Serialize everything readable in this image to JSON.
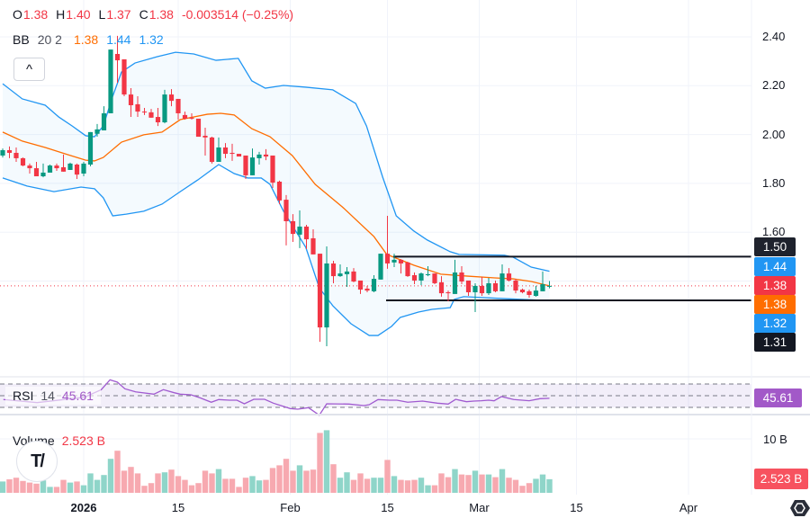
{
  "legend": {
    "o_label": "O",
    "o": "1.38",
    "h_label": "H",
    "h": "1.40",
    "l_label": "L",
    "l": "1.37",
    "c_label": "C",
    "c": "1.38",
    "change": "-0.003514 (−0.25%)"
  },
  "bb": {
    "name": "BB",
    "params": "20 2",
    "basis": "1.38",
    "upper": "1.44",
    "lower": "1.32"
  },
  "collapse_icon": "chevron-up-icon",
  "collapse_glyph": "^",
  "rsi": {
    "name": "RSI",
    "params": "14",
    "value": "45.61"
  },
  "volume": {
    "name": "Volume",
    "value": "2.523 B",
    "axis_tick": "10 B",
    "axis_label": "2.523 B"
  },
  "logo_text": "TV",
  "price_axis_ticks": [
    "2.40",
    "2.20",
    "2.00",
    "1.80",
    "1.60"
  ],
  "price_labels": [
    {
      "text": "1.50",
      "color": "#1e222d"
    },
    {
      "text": "1.44",
      "color": "#2196f3"
    },
    {
      "text": "1.38",
      "color": "#f23645"
    },
    {
      "text": "1.38",
      "color": "#ff6d00"
    },
    {
      "text": "1.32",
      "color": "#2196f3"
    },
    {
      "text": "1.31",
      "color": "#131722"
    }
  ],
  "time_axis": [
    "2026",
    "15",
    "Feb",
    "15",
    "Mar",
    "15",
    "Apr"
  ],
  "colors": {
    "up": "#089981",
    "down": "#f23645",
    "bb_band": "#2196f3",
    "bb_basis": "#ff6d00",
    "rsi": "#a05ad0",
    "rsi_label": "#a259c8",
    "level_line": "#131722",
    "volume_up": "#8fd5c9",
    "volume_down": "#f7a9b0"
  },
  "chart_data": [
    {
      "type": "candlestick",
      "ylim": [
        1.1,
        2.45
      ],
      "y_ticks": [
        2.4,
        2.2,
        2.0,
        1.8,
        1.6,
        1.4
      ],
      "horizontal_levels": [
        1.5,
        1.31
      ],
      "last_price": 1.38,
      "ohlc": [
        [
          1.914,
          1.943,
          1.906,
          1.936
        ],
        [
          1.936,
          1.951,
          1.903,
          1.925
        ],
        [
          1.925,
          1.947,
          1.888,
          1.903
        ],
        [
          1.903,
          1.906,
          1.87,
          1.873
        ],
        [
          1.873,
          1.881,
          1.84,
          1.862
        ],
        [
          1.862,
          1.888,
          1.829,
          1.829
        ],
        [
          1.829,
          1.881,
          1.825,
          1.844
        ],
        [
          1.844,
          1.877,
          1.844,
          1.873
        ],
        [
          1.873,
          1.881,
          1.851,
          1.862
        ],
        [
          1.866,
          1.918,
          1.848,
          1.848
        ],
        [
          1.855,
          1.885,
          1.855,
          1.881
        ],
        [
          1.877,
          1.881,
          1.818,
          1.836
        ],
        [
          1.84,
          1.888,
          1.829,
          1.881
        ],
        [
          1.877,
          2.01,
          1.87,
          2.01
        ],
        [
          2.003,
          2.043,
          1.991,
          2.021
        ],
        [
          2.017,
          2.116,
          2.017,
          2.087
        ],
        [
          2.087,
          2.348,
          2.087,
          2.348
        ],
        [
          2.33,
          2.404,
          2.212,
          2.304
        ],
        [
          2.308,
          2.308,
          2.157,
          2.164
        ],
        [
          2.164,
          2.19,
          2.072,
          2.12
        ],
        [
          2.124,
          2.157,
          2.072,
          2.094
        ],
        [
          2.094,
          2.109,
          2.08,
          2.091
        ],
        [
          2.091,
          2.105,
          2.069,
          2.069
        ],
        [
          2.072,
          2.109,
          2.035,
          2.05
        ],
        [
          2.05,
          2.183,
          2.046,
          2.164
        ],
        [
          2.164,
          2.186,
          2.116,
          2.138
        ],
        [
          2.146,
          2.146,
          2.061,
          2.087
        ],
        [
          2.08,
          2.094,
          2.061,
          2.065
        ],
        [
          2.069,
          2.087,
          2.061,
          2.065
        ],
        [
          2.065,
          2.065,
          1.991,
          1.991
        ],
        [
          1.995,
          2.028,
          1.914,
          1.988
        ],
        [
          1.988,
          1.991,
          1.881,
          1.888
        ],
        [
          1.888,
          1.988,
          1.888,
          1.947
        ],
        [
          1.947,
          1.965,
          1.903,
          1.921
        ],
        [
          1.925,
          1.962,
          1.892,
          1.921
        ],
        [
          1.921,
          1.921,
          1.91,
          1.91
        ],
        [
          1.914,
          1.914,
          1.818,
          1.833
        ],
        [
          1.833,
          1.943,
          1.833,
          1.906
        ],
        [
          1.903,
          1.929,
          1.877,
          1.918
        ],
        [
          1.918,
          1.94,
          1.895,
          1.91
        ],
        [
          1.914,
          1.914,
          1.781,
          1.803
        ],
        [
          1.807,
          1.811,
          1.715,
          1.73
        ],
        [
          1.733,
          1.752,
          1.546,
          1.645
        ],
        [
          1.645,
          1.674,
          1.56,
          1.593
        ],
        [
          1.59,
          1.689,
          1.535,
          1.623
        ],
        [
          1.623,
          1.63,
          1.531,
          1.571
        ],
        [
          1.575,
          1.612,
          1.509,
          1.509
        ],
        [
          1.512,
          1.512,
          1.151,
          1.21
        ],
        [
          1.21,
          1.542,
          1.133,
          1.472
        ],
        [
          1.472,
          1.483,
          1.391,
          1.42
        ],
        [
          1.42,
          1.468,
          1.417,
          1.431
        ],
        [
          1.428,
          1.457,
          1.376,
          1.439
        ],
        [
          1.439,
          1.453,
          1.395,
          1.398
        ],
        [
          1.402,
          1.402,
          1.347,
          1.365
        ],
        [
          1.369,
          1.38,
          1.354,
          1.361
        ],
        [
          1.358,
          1.424,
          1.354,
          1.409
        ],
        [
          1.406,
          1.512,
          1.406,
          1.512
        ],
        [
          1.512,
          1.667,
          1.45,
          1.472
        ],
        [
          1.476,
          1.512,
          1.457,
          1.487
        ],
        [
          1.487,
          1.49,
          1.431,
          1.472
        ],
        [
          1.476,
          1.479,
          1.417,
          1.42
        ],
        [
          1.424,
          1.435,
          1.387,
          1.402
        ],
        [
          1.402,
          1.435,
          1.383,
          1.431
        ],
        [
          1.424,
          1.461,
          1.42,
          1.428
        ],
        [
          1.431,
          1.431,
          1.387,
          1.391
        ],
        [
          1.395,
          1.42,
          1.336,
          1.35
        ],
        [
          1.354,
          1.361,
          1.317,
          1.35
        ],
        [
          1.347,
          1.487,
          1.347,
          1.435
        ],
        [
          1.435,
          1.461,
          1.387,
          1.398
        ],
        [
          1.402,
          1.402,
          1.339,
          1.354
        ],
        [
          1.354,
          1.391,
          1.273,
          1.38
        ],
        [
          1.38,
          1.417,
          1.339,
          1.35
        ],
        [
          1.35,
          1.413,
          1.343,
          1.391
        ],
        [
          1.391,
          1.402,
          1.354,
          1.358
        ],
        [
          1.358,
          1.468,
          1.358,
          1.431
        ],
        [
          1.431,
          1.453,
          1.398,
          1.402
        ],
        [
          1.402,
          1.409,
          1.35,
          1.361
        ],
        [
          1.365,
          1.369,
          1.35,
          1.354
        ],
        [
          1.358,
          1.365,
          1.332,
          1.343
        ],
        [
          1.339,
          1.38,
          1.336,
          1.361
        ],
        [
          1.358,
          1.439,
          1.358,
          1.387
        ],
        [
          1.38,
          1.4,
          1.37,
          1.38
        ]
      ],
      "bb_upper": [
        [
          0,
          2.208
        ],
        [
          2.9,
          2.146
        ],
        [
          6.3,
          2.12
        ],
        [
          8.3,
          2.072
        ],
        [
          10.3,
          2.035
        ],
        [
          12.3,
          1.995
        ],
        [
          13.6,
          1.991
        ],
        [
          14.9,
          2.035
        ],
        [
          16.3,
          2.157
        ],
        [
          17.6,
          2.256
        ],
        [
          19.6,
          2.293
        ],
        [
          22.9,
          2.319
        ],
        [
          25.6,
          2.337
        ],
        [
          28.3,
          2.33
        ],
        [
          31.6,
          2.304
        ],
        [
          34.9,
          2.312
        ],
        [
          36.9,
          2.22
        ],
        [
          38.9,
          2.19
        ],
        [
          41.6,
          2.201
        ],
        [
          44.9,
          2.194
        ],
        [
          48.9,
          2.183
        ],
        [
          52.3,
          2.127
        ],
        [
          53.9,
          2.035
        ],
        [
          56.3,
          1.825
        ],
        [
          58.3,
          1.667
        ],
        [
          60.9,
          1.605
        ],
        [
          62.9,
          1.568
        ],
        [
          66.3,
          1.52
        ],
        [
          67.6,
          1.509
        ],
        [
          74.3,
          1.506
        ],
        [
          75.6,
          1.498
        ],
        [
          78.3,
          1.457
        ],
        [
          81,
          1.44
        ]
      ],
      "bb_basis": [
        [
          0,
          2.01
        ],
        [
          2.9,
          1.973
        ],
        [
          6.3,
          1.947
        ],
        [
          9.6,
          1.918
        ],
        [
          12.3,
          1.895
        ],
        [
          13.6,
          1.892
        ],
        [
          14.9,
          1.906
        ],
        [
          17.6,
          1.969
        ],
        [
          20.9,
          1.999
        ],
        [
          23.6,
          2.01
        ],
        [
          26.3,
          2.061
        ],
        [
          30.3,
          2.083
        ],
        [
          32.3,
          2.087
        ],
        [
          34.3,
          2.08
        ],
        [
          36.9,
          2.024
        ],
        [
          39.6,
          1.991
        ],
        [
          42.9,
          1.914
        ],
        [
          46.3,
          1.796
        ],
        [
          50.3,
          1.704
        ],
        [
          55,
          1.582
        ],
        [
          56.9,
          1.509
        ],
        [
          60.9,
          1.465
        ],
        [
          64.9,
          1.428
        ],
        [
          68.9,
          1.42
        ],
        [
          72.9,
          1.413
        ],
        [
          75.6,
          1.409
        ],
        [
          78.3,
          1.398
        ],
        [
          81,
          1.38
        ]
      ],
      "bb_lower": [
        [
          0,
          1.822
        ],
        [
          3.6,
          1.789
        ],
        [
          7.6,
          1.766
        ],
        [
          11.6,
          1.785
        ],
        [
          13.6,
          1.778
        ],
        [
          14.9,
          1.741
        ],
        [
          16.3,
          1.667
        ],
        [
          18.3,
          1.674
        ],
        [
          20.9,
          1.686
        ],
        [
          23.6,
          1.715
        ],
        [
          26.3,
          1.766
        ],
        [
          28.9,
          1.814
        ],
        [
          32,
          1.877
        ],
        [
          34.3,
          1.84
        ],
        [
          36.3,
          1.822
        ],
        [
          38.3,
          1.822
        ],
        [
          39.6,
          1.796
        ],
        [
          41.6,
          1.686
        ],
        [
          44.9,
          1.538
        ],
        [
          46.9,
          1.372
        ],
        [
          48.9,
          1.299
        ],
        [
          51.6,
          1.225
        ],
        [
          54.3,
          1.177
        ],
        [
          55.6,
          1.177
        ],
        [
          57.6,
          1.214
        ],
        [
          58.9,
          1.251
        ],
        [
          61.6,
          1.273
        ],
        [
          63.6,
          1.284
        ],
        [
          66.3,
          1.291
        ],
        [
          66.9,
          1.325
        ],
        [
          68.3,
          1.336
        ],
        [
          74.3,
          1.328
        ],
        [
          81,
          1.32
        ]
      ]
    },
    {
      "type": "line",
      "name": "RSI 14",
      "levels": [
        70,
        50,
        30
      ],
      "ylim": [
        10,
        85
      ],
      "points": [
        [
          0.1,
          43.4
        ],
        [
          5.1,
          38.2
        ],
        [
          12.1,
          47.4
        ],
        [
          14.6,
          60.3
        ],
        [
          15.9,
          77.2
        ],
        [
          17,
          73.1
        ],
        [
          18.1,
          61.8
        ],
        [
          19.7,
          56.6
        ],
        [
          22.4,
          52.6
        ],
        [
          23.8,
          60.3
        ],
        [
          25.4,
          55.1
        ],
        [
          26.3,
          52.6
        ],
        [
          27.9,
          51.5
        ],
        [
          29.2,
          46.5
        ],
        [
          30.9,
          38.8
        ],
        [
          32,
          43.4
        ],
        [
          33.6,
          42.3
        ],
        [
          34.7,
          42.3
        ],
        [
          35.8,
          36.2
        ],
        [
          37.2,
          43.8
        ],
        [
          38.8,
          43.8
        ],
        [
          40.1,
          37.2
        ],
        [
          42.6,
          28
        ],
        [
          43.7,
          26.9
        ],
        [
          45.3,
          29.5
        ],
        [
          46.9,
          16.6
        ],
        [
          48,
          36.2
        ],
        [
          51.3,
          35.7
        ],
        [
          53.5,
          33.1
        ],
        [
          54.3,
          34.6
        ],
        [
          55.6,
          43.4
        ],
        [
          57.3,
          42.3
        ],
        [
          58.4,
          42.3
        ],
        [
          60,
          38.8
        ],
        [
          62.2,
          40.8
        ],
        [
          64.4,
          37.2
        ],
        [
          66,
          35.7
        ],
        [
          67.1,
          43.8
        ],
        [
          68.7,
          39.7
        ],
        [
          69.8,
          40.8
        ],
        [
          70.9,
          41.3
        ],
        [
          72,
          42.3
        ],
        [
          72.8,
          41.3
        ],
        [
          73.9,
          48.5
        ],
        [
          75.7,
          43.4
        ],
        [
          78,
          41.3
        ],
        [
          79.6,
          44.9
        ],
        [
          81,
          45.61
        ]
      ]
    },
    {
      "type": "bar",
      "name": "Volume",
      "unit": "B",
      "ylim": [
        0,
        12
      ],
      "values": [
        2.1,
        2.5,
        2.8,
        2.2,
        1.9,
        1.7,
        2.3,
        1.1,
        1.1,
        2.4,
        1.9,
        2.1,
        1.4,
        3.6,
        2.4,
        3.3,
        6.3,
        7.8,
        4.1,
        4.8,
        3.6,
        1.3,
        1.8,
        3.6,
        3.8,
        4.3,
        3.1,
        2.4,
        1.4,
        1.8,
        4.1,
        3.6,
        4.4,
        2.6,
        2.6,
        1.1,
        2.8,
        3.1,
        2.3,
        2.4,
        4.6,
        5.1,
        6.3,
        4.1,
        5.1,
        4.1,
        4.3,
        11.1,
        11.6,
        5.3,
        2.8,
        3.8,
        2.4,
        3.6,
        2.6,
        2.8,
        2.8,
        6.1,
        3.1,
        2.4,
        2.3,
        2.4,
        2.8,
        1.4,
        1.4,
        3.6,
        2.9,
        4.4,
        3.4,
        3.3,
        4.1,
        3.4,
        3.4,
        2.9,
        4.4,
        2.8,
        2.4,
        1.3,
        1.8,
        2.6,
        3.4,
        2.523
      ]
    }
  ]
}
